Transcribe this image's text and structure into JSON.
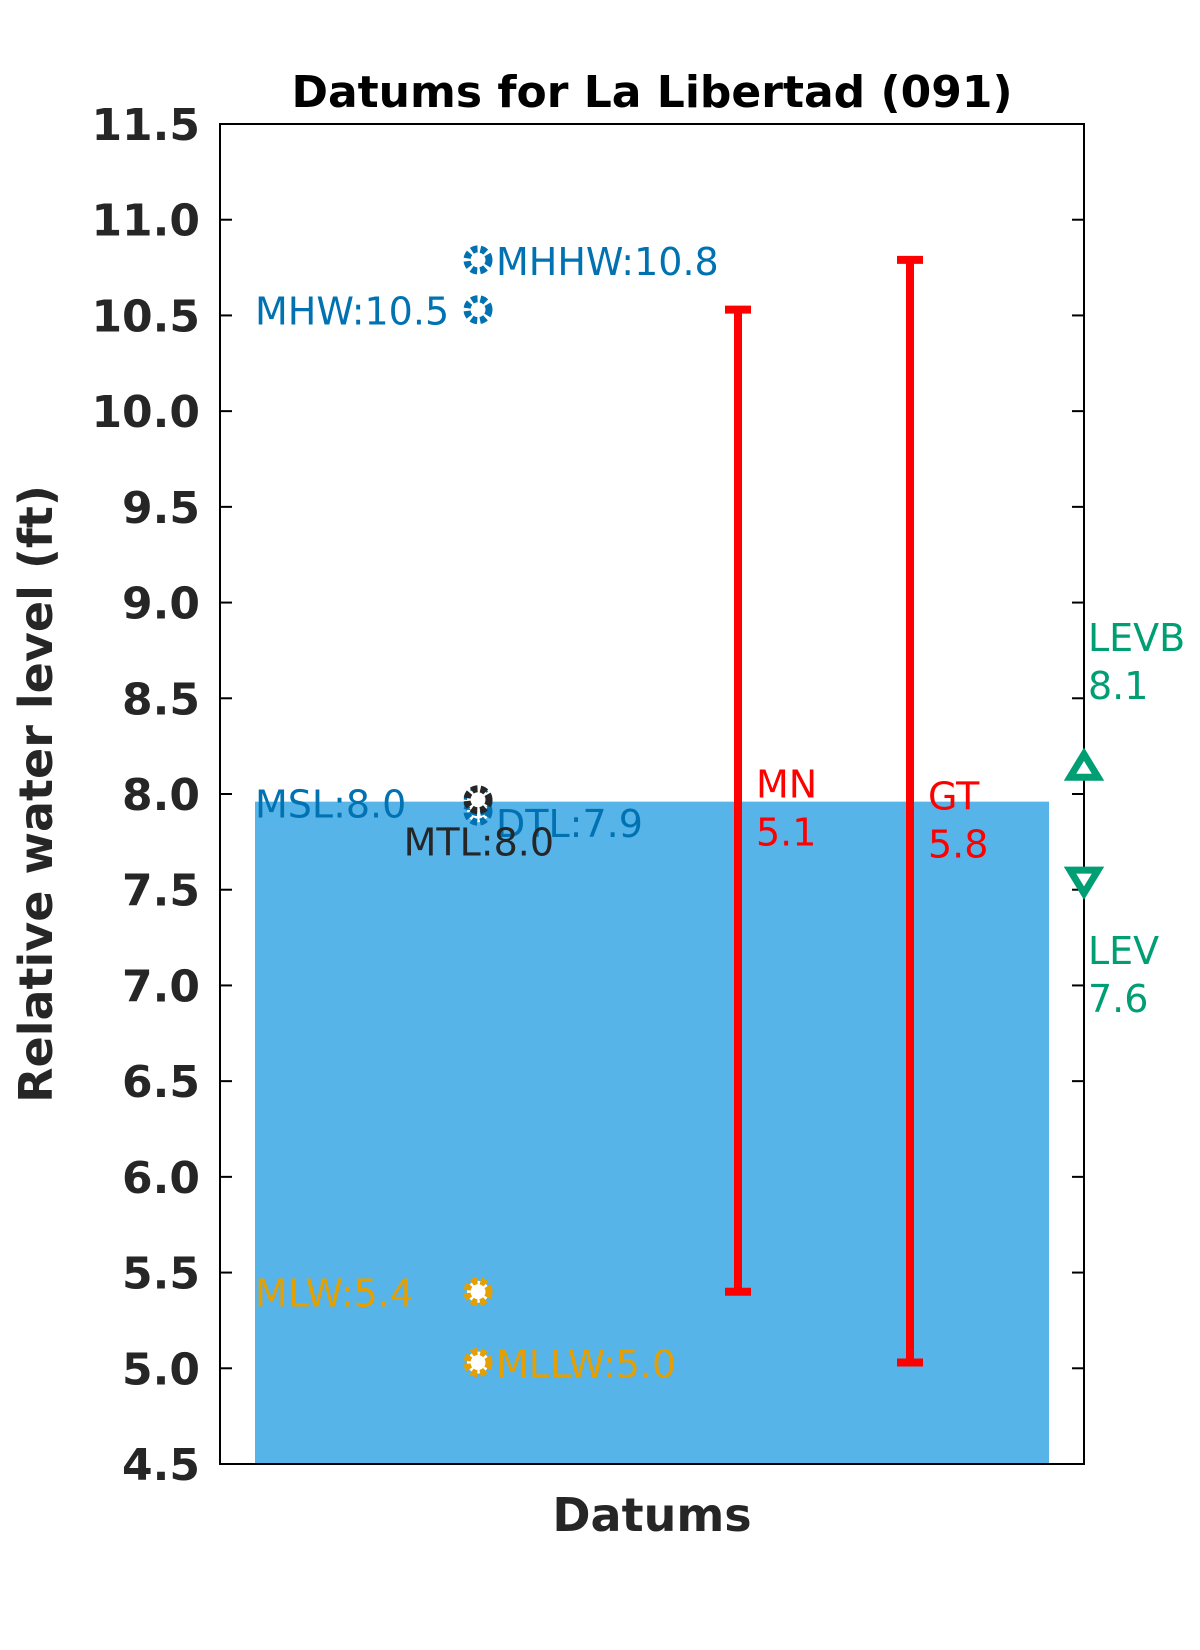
{
  "chart_data": {
    "type": "bar",
    "title": "Datums for La Libertad (091)",
    "xlabel": "Datums",
    "ylabel": "Relative water level (ft)",
    "ylim": [
      4.5,
      11.5
    ],
    "yticks": [
      {
        "value": 4.5,
        "label": "4.5"
      },
      {
        "value": 5.0,
        "label": "5.0"
      },
      {
        "value": 5.5,
        "label": "5.5"
      },
      {
        "value": 6.0,
        "label": "6.0"
      },
      {
        "value": 6.5,
        "label": "6.5"
      },
      {
        "value": 7.0,
        "label": "7.0"
      },
      {
        "value": 7.5,
        "label": "7.5"
      },
      {
        "value": 8.0,
        "label": "8.0"
      },
      {
        "value": 8.5,
        "label": "8.5"
      },
      {
        "value": 9.0,
        "label": "9.0"
      },
      {
        "value": 9.5,
        "label": "9.5"
      },
      {
        "value": 10.0,
        "label": "10.0"
      },
      {
        "value": 10.5,
        "label": "10.5"
      },
      {
        "value": 11.0,
        "label": "11.0"
      },
      {
        "value": 11.5,
        "label": "11.5"
      }
    ],
    "grid": false,
    "background_bar": {
      "value": 7.96,
      "color": "#56b4e9"
    },
    "datum_points": [
      {
        "id": "mhhw",
        "label": "MHHW:10.8",
        "value": 10.79,
        "color": "#0072b2",
        "text_color": "#0072b2",
        "label_side": "right"
      },
      {
        "id": "mhw",
        "label": "MHW:10.5",
        "value": 10.53,
        "color": "#0072b2",
        "text_color": "#0072b2",
        "label_side": "left"
      },
      {
        "id": "dtl",
        "label": "DTL:7.9",
        "value": 7.91,
        "color": "#0072b2",
        "text_color": "#0072b2",
        "label_side": "right"
      },
      {
        "id": "msl",
        "label": "MSL:8.0",
        "value": 7.96,
        "color": "#0072b2",
        "text_color": "#0072b2",
        "label_side": "left"
      },
      {
        "id": "mtl",
        "label": "MTL:8.0",
        "value": 7.97,
        "color": "#262626",
        "text_color": "#262626",
        "label_side": "below-left"
      },
      {
        "id": "mlw",
        "label": "MLW:5.4",
        "value": 5.4,
        "color": "#e69f00",
        "text_color": "#e69f00",
        "label_side": "left"
      },
      {
        "id": "mllw",
        "label": "MLLW:5.0",
        "value": 5.03,
        "color": "#e69f00",
        "text_color": "#e69f00",
        "label_side": "right"
      }
    ],
    "ranges": [
      {
        "id": "mn",
        "name": "MN",
        "value_label": "5.1",
        "low": 5.4,
        "high": 10.53,
        "color": "#ff0000"
      },
      {
        "id": "gt",
        "name": "GT",
        "value_label": "5.8",
        "low": 5.03,
        "high": 10.79,
        "color": "#ff0000"
      }
    ],
    "extremes": [
      {
        "id": "levb",
        "name": "LEVB",
        "value_label": "8.1",
        "value": 8.14,
        "marker": "triangle-up",
        "color": "#009e73"
      },
      {
        "id": "lev",
        "name": "LEV",
        "value_label": "7.6",
        "value": 7.55,
        "marker": "triangle-down",
        "color": "#009e73"
      }
    ]
  }
}
